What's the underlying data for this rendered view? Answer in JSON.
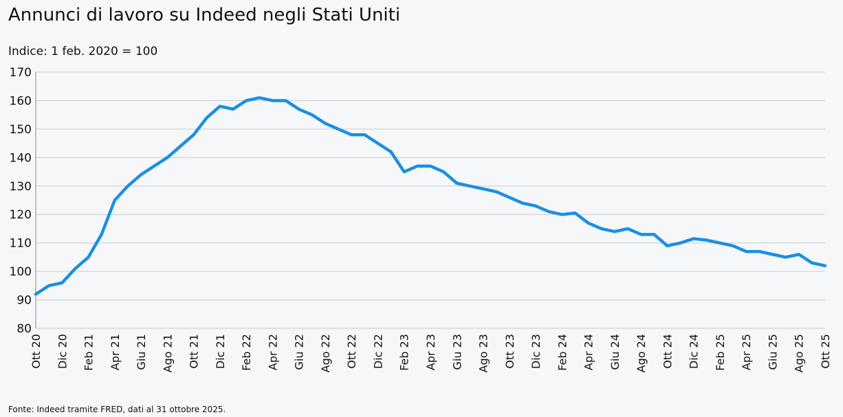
{
  "chart_data": {
    "type": "line",
    "title": "Annunci di lavoro su Indeed negli Stati Uniti",
    "subtitle": "Indice: 1 feb. 2020 = 100",
    "source": "Fonte: Indeed tramite FRED, dati al 31 ottobre 2025.",
    "categories": [
      "Ott 20",
      null,
      "Dic 20",
      null,
      "Feb 21",
      null,
      "Apr 21",
      null,
      "Giu 21",
      null,
      "Ago 21",
      null,
      "Ott 21",
      null,
      "Dic 21",
      null,
      "Feb 22",
      null,
      "Apr 22",
      null,
      "Giu 22",
      null,
      "Ago 22",
      null,
      "Ott 22",
      null,
      "Dic 22",
      null,
      "Feb 23",
      null,
      "Apr 23",
      null,
      "Giu 23",
      null,
      "Ago 23",
      null,
      "Ott 23",
      null,
      "Dic 23",
      null,
      "Feb 24",
      null,
      "Apr 24",
      null,
      "Giu 24",
      null,
      "Ago 24",
      null,
      "Ott 24",
      null,
      "Dic 24",
      null,
      "Feb 25",
      null,
      "Apr 25",
      null,
      "Giu 25",
      null,
      "Ago 25",
      null,
      "Ott 25"
    ],
    "series": [
      {
        "color": "#1a8fe3",
        "values": [
          92,
          95,
          96,
          101,
          105,
          113,
          125,
          130,
          134,
          137,
          140,
          144,
          148,
          154,
          158,
          157,
          160,
          161,
          160,
          160,
          157,
          155,
          152,
          150,
          148,
          148,
          145,
          142,
          135,
          137,
          137,
          135,
          131,
          130,
          129,
          128,
          126,
          124,
          123,
          121,
          120,
          120.5,
          117,
          115,
          114,
          115,
          113,
          113,
          109,
          110,
          111.5,
          111,
          110,
          109,
          107,
          107,
          106,
          105,
          106,
          103,
          102
        ]
      }
    ],
    "ylim": [
      80,
      170
    ],
    "yticks": [
      80,
      90,
      100,
      110,
      120,
      130,
      140,
      150,
      160,
      170
    ],
    "grid": true
  }
}
